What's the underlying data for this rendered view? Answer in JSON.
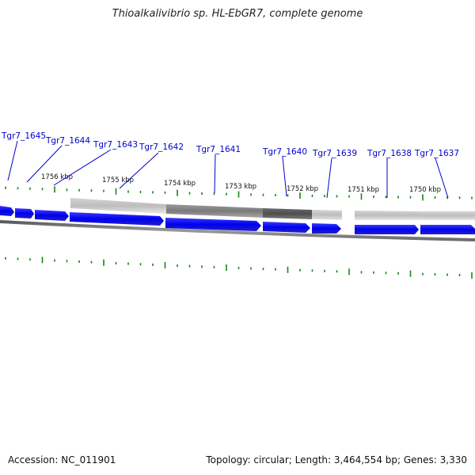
{
  "title": "Thioalkalivibrio sp. HL-EbGR7, complete genome",
  "footer": {
    "accession": "Accession: NC_011901",
    "stats": "Topology: circular; Length: 3,464,554 bp; Genes: 3,330"
  },
  "colors": {
    "gene_fill": "#0000ee",
    "gene_label": "#0000cc",
    "tick": "#118811",
    "backbone": "#888888"
  },
  "kbp_labels": [
    "1756 kbp",
    "1755 kbp",
    "1754 kbp",
    "1753 kbp",
    "1752 kbp",
    "1751 kbp",
    "1750 kbp"
  ],
  "gene_labels": [
    "Tgr7_1645",
    "Tgr7_1644",
    "Tgr7_1643",
    "Tgr7_1642",
    "Tgr7_1641",
    "Tgr7_1640",
    "Tgr7_1639",
    "Tgr7_1638",
    "Tgr7_1637"
  ]
}
